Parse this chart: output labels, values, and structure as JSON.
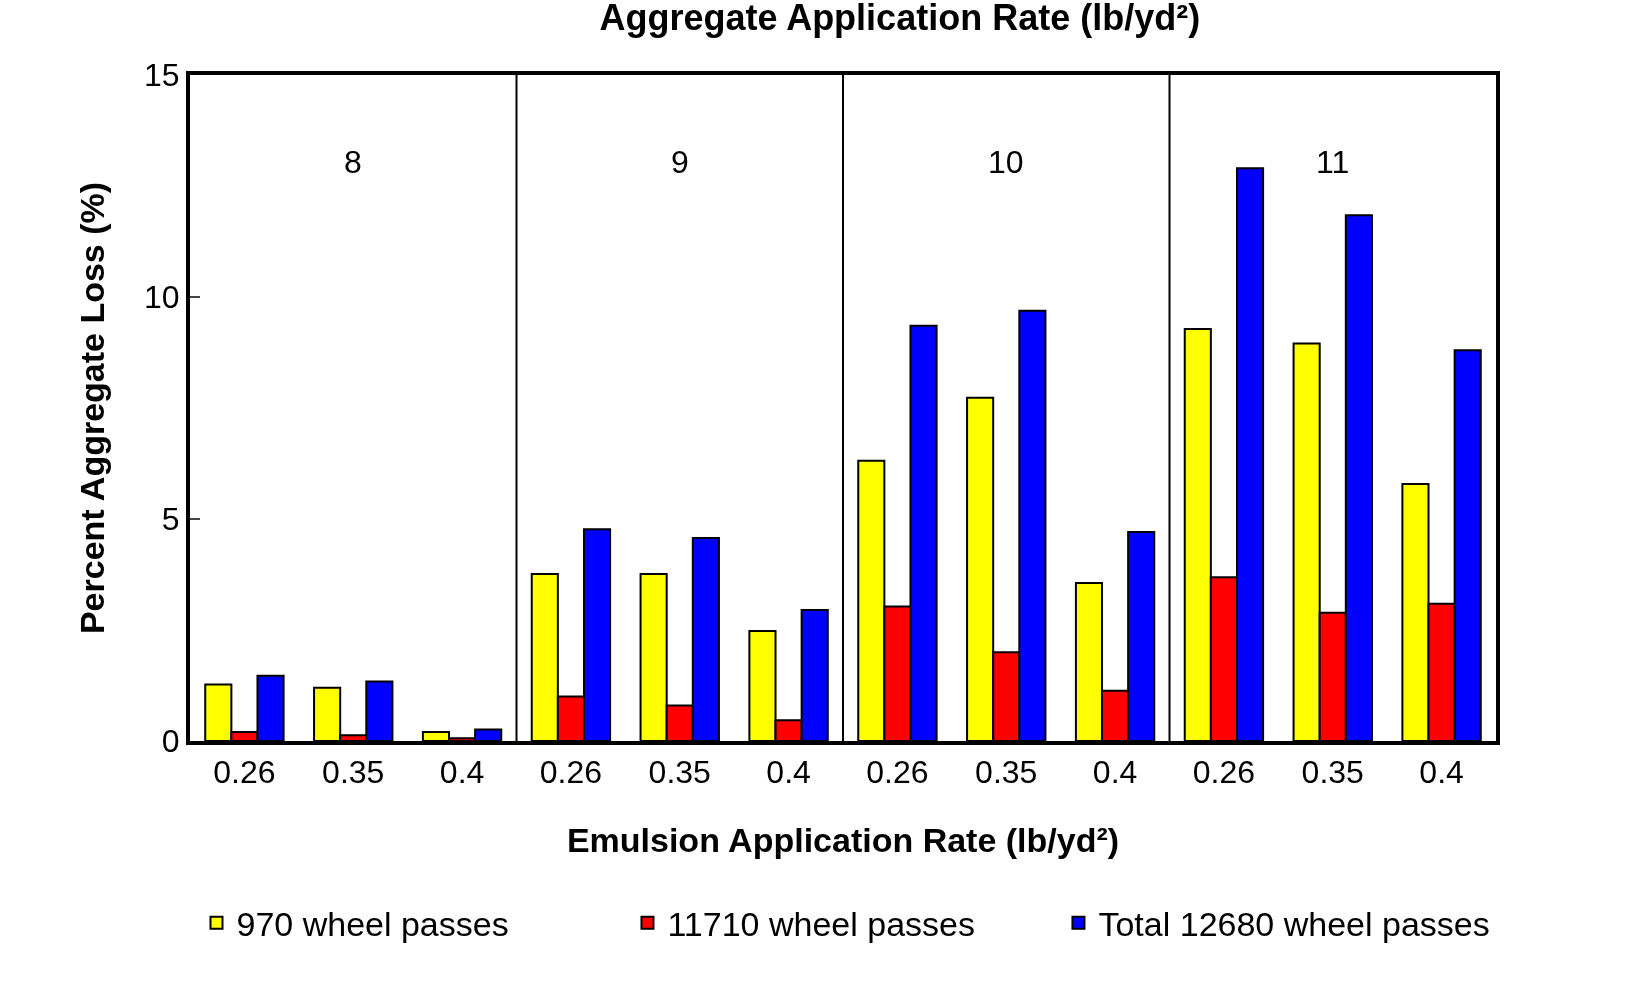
{
  "chart_data": {
    "type": "bar",
    "title": "Aggregate Application Rate (lb/yd²)",
    "xlabel": "Emulsion Application Rate (lb/yd²)",
    "ylabel": "Percent Aggregate Loss (%)",
    "categories": [
      "0.26",
      "0.35",
      "0.4",
      "0.26",
      "0.35",
      "0.4",
      "0.26",
      "0.35",
      "0.4",
      "0.26",
      "0.35",
      "0.4"
    ],
    "series": [
      {
        "name": "970 wheel passes",
        "color": "#ffff00",
        "values": [
          1.27,
          1.2,
          0.2,
          3.76,
          3.76,
          2.48,
          6.31,
          7.73,
          3.56,
          9.28,
          8.95,
          5.79
        ]
      },
      {
        "name": "11710 wheel passes",
        "color": "#ff0000",
        "values": [
          0.2,
          0.13,
          0.06,
          1.0,
          0.8,
          0.47,
          3.03,
          2.0,
          1.13,
          3.69,
          2.89,
          3.09
        ]
      },
      {
        "name": "Total 12680 wheel passes",
        "color": "#0000ff",
        "values": [
          1.47,
          1.34,
          0.26,
          4.77,
          4.57,
          2.95,
          9.35,
          9.69,
          4.71,
          12.9,
          11.84,
          8.8
        ]
      }
    ],
    "annotations": [
      "8",
      "9",
      "10",
      "11"
    ],
    "ylim": [
      0,
      15
    ],
    "yticks": [
      0,
      5,
      10,
      15
    ],
    "legend": "bottom"
  }
}
